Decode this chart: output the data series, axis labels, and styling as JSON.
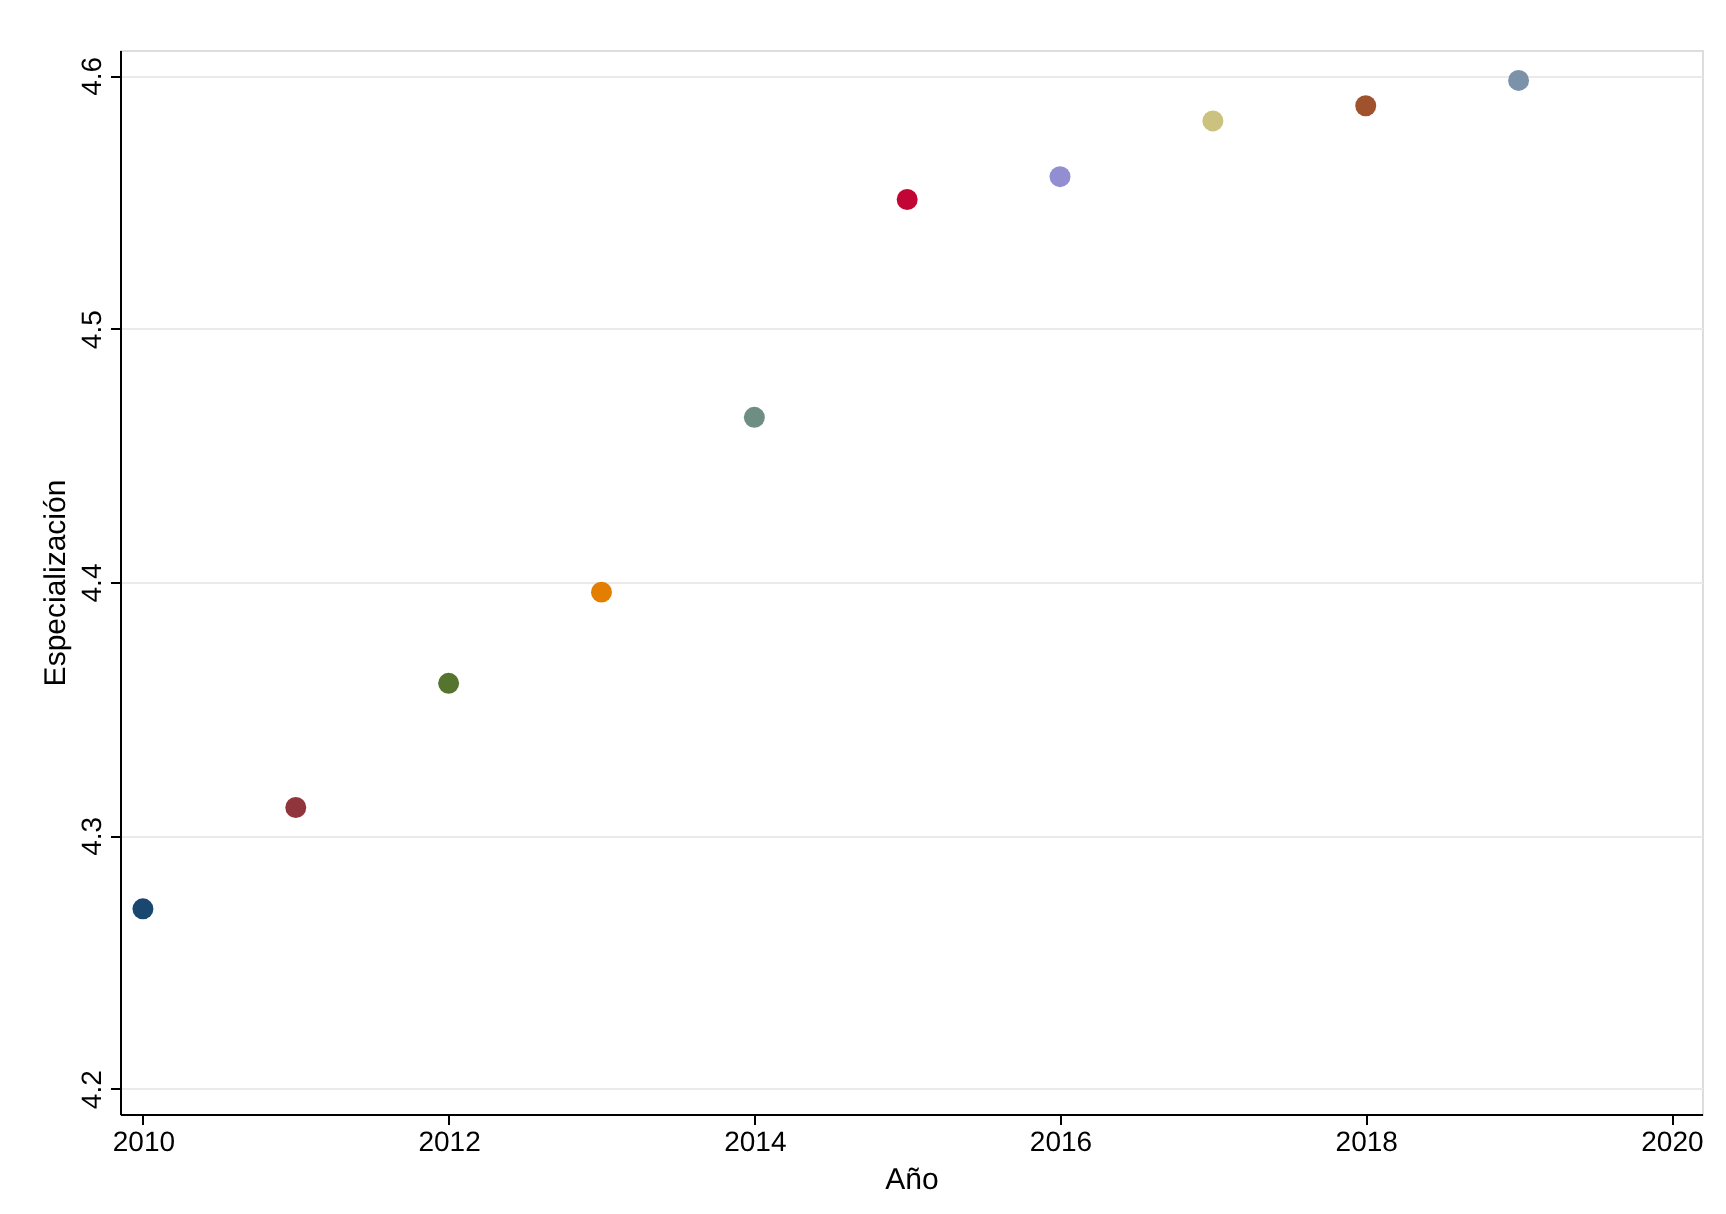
{
  "chart_data": {
    "type": "scatter",
    "xlabel": "Año",
    "ylabel": "Especialización",
    "x": [
      2010,
      2011,
      2012,
      2013,
      2014,
      2015,
      2016,
      2017,
      2018,
      2019
    ],
    "values": [
      4.271,
      4.311,
      4.36,
      4.396,
      4.465,
      4.551,
      4.56,
      4.582,
      4.588,
      4.598
    ],
    "colors": [
      "#1a476f",
      "#90353b",
      "#55752f",
      "#e37e00",
      "#6e8e84",
      "#c10534",
      "#938dd2",
      "#cac27e",
      "#a0522d",
      "#7b92a8"
    ],
    "xlim": [
      2009.85,
      2020.2
    ],
    "xticks": [
      2010,
      2012,
      2014,
      2016,
      2018,
      2020
    ],
    "ylim": [
      4.19,
      4.61
    ],
    "yticks": [
      4.2,
      4.3,
      4.4,
      4.5,
      4.6
    ],
    "grid": "y",
    "marker": "circle"
  }
}
